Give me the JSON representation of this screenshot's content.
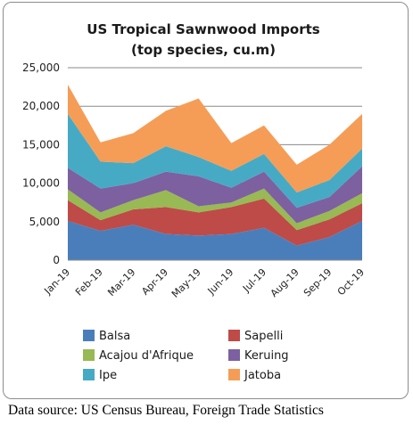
{
  "chart_data": {
    "type": "area",
    "stacked": true,
    "title_lines": [
      "US Tropical Sawnwood Imports",
      "(top species, cu.m)"
    ],
    "categories": [
      "Jan-19",
      "Feb-19",
      "Mar-19",
      "Apr-19",
      "May-19",
      "Jun-19",
      "Jul-19",
      "Aug-19",
      "Sep-19",
      "Oct-19"
    ],
    "ylim": [
      0,
      25000
    ],
    "yticks": [
      0,
      5000,
      10000,
      15000,
      20000,
      25000
    ],
    "ytick_labels": [
      "0",
      "5,000",
      "10,000",
      "15,000",
      "20,000",
      "25,000"
    ],
    "grid": "horizontal",
    "legend_position": "bottom",
    "series": [
      {
        "name": "Balsa",
        "color": "#4a7ebb",
        "values": [
          5100,
          3800,
          4600,
          3400,
          3200,
          3400,
          4200,
          1900,
          3000,
          5100
        ]
      },
      {
        "name": "Sapelli",
        "color": "#be4b48",
        "values": [
          2700,
          1400,
          2000,
          3500,
          3000,
          3500,
          3800,
          2000,
          2300,
          2300
        ]
      },
      {
        "name": "Acajou d'Afrique",
        "color": "#98b954",
        "values": [
          1400,
          1000,
          1200,
          2200,
          800,
          600,
          1300,
          900,
          1100,
          1300
        ]
      },
      {
        "name": "Keruing",
        "color": "#7d60a0",
        "values": [
          2800,
          3100,
          2200,
          2400,
          3900,
          1900,
          2200,
          2000,
          1800,
          3500
        ]
      },
      {
        "name": "Ipe",
        "color": "#46aac5",
        "values": [
          7000,
          3500,
          2600,
          3300,
          2500,
          2200,
          2300,
          2000,
          2200,
          2300
        ]
      },
      {
        "name": "Jatoba",
        "color": "#f59d56",
        "values": [
          3800,
          2500,
          3900,
          4600,
          7600,
          3600,
          3700,
          3600,
          4600,
          4500
        ]
      }
    ]
  },
  "source_text": "Data source: US Census Bureau, Foreign Trade Statistics"
}
